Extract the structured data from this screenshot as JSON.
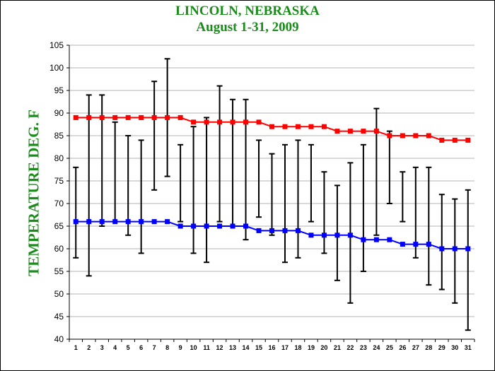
{
  "chart_data": {
    "type": "line",
    "title": "LINCOLN, NEBRASKA",
    "subtitle": "August 1-31, 2009",
    "ylabel": "TEMPERATURE DEG. F",
    "xlabel": "",
    "ylim": [
      40,
      105
    ],
    "yticks": [
      40,
      45,
      50,
      55,
      60,
      65,
      70,
      75,
      80,
      85,
      90,
      95,
      100,
      105
    ],
    "grid": true,
    "x": [
      1,
      2,
      3,
      4,
      5,
      6,
      7,
      8,
      9,
      10,
      11,
      12,
      13,
      14,
      15,
      16,
      17,
      18,
      19,
      20,
      21,
      22,
      23,
      24,
      25,
      26,
      27,
      28,
      29,
      30,
      31
    ],
    "series": [
      {
        "color": "#ff0000",
        "values": [
          89,
          89,
          89,
          89,
          89,
          89,
          89,
          89,
          89,
          88,
          88,
          88,
          88,
          88,
          88,
          87,
          87,
          87,
          87,
          87,
          86,
          86,
          86,
          86,
          85,
          85,
          85,
          85,
          84,
          84,
          84
        ]
      },
      {
        "color": "#0000ff",
        "values": [
          66,
          66,
          66,
          66,
          66,
          66,
          66,
          66,
          65,
          65,
          65,
          65,
          65,
          65,
          64,
          64,
          64,
          64,
          63,
          63,
          63,
          63,
          62,
          62,
          62,
          61,
          61,
          61,
          60,
          60,
          60
        ]
      }
    ],
    "daily_range": [
      {
        "day": 1,
        "low": 58,
        "high": 78
      },
      {
        "day": 2,
        "low": 54,
        "high": 94
      },
      {
        "day": 3,
        "low": 65,
        "high": 94
      },
      {
        "day": 4,
        "low": 66,
        "high": 88
      },
      {
        "day": 5,
        "low": 63,
        "high": 85
      },
      {
        "day": 6,
        "low": 59,
        "high": 84
      },
      {
        "day": 7,
        "low": 73,
        "high": 97
      },
      {
        "day": 8,
        "low": 76,
        "high": 102
      },
      {
        "day": 9,
        "low": 66,
        "high": 83
      },
      {
        "day": 10,
        "low": 59,
        "high": 87
      },
      {
        "day": 11,
        "low": 57,
        "high": 89
      },
      {
        "day": 12,
        "low": 66,
        "high": 96
      },
      {
        "day": 13,
        "low": 65,
        "high": 93
      },
      {
        "day": 14,
        "low": 62,
        "high": 93
      },
      {
        "day": 15,
        "low": 67,
        "high": 84
      },
      {
        "day": 16,
        "low": 63,
        "high": 81
      },
      {
        "day": 17,
        "low": 57,
        "high": 83
      },
      {
        "day": 18,
        "low": 58,
        "high": 84
      },
      {
        "day": 19,
        "low": 66,
        "high": 83
      },
      {
        "day": 20,
        "low": 59,
        "high": 77
      },
      {
        "day": 21,
        "low": 53,
        "high": 74
      },
      {
        "day": 22,
        "low": 48,
        "high": 79
      },
      {
        "day": 23,
        "low": 55,
        "high": 83
      },
      {
        "day": 24,
        "low": 63,
        "high": 91
      },
      {
        "day": 25,
        "low": 70,
        "high": 86
      },
      {
        "day": 26,
        "low": 66,
        "high": 77
      },
      {
        "day": 27,
        "low": 58,
        "high": 78
      },
      {
        "day": 28,
        "low": 52,
        "high": 78
      },
      {
        "day": 29,
        "low": 51,
        "high": 72
      },
      {
        "day": 30,
        "low": 48,
        "high": 71
      },
      {
        "day": 31,
        "low": 42,
        "high": 73
      }
    ]
  }
}
